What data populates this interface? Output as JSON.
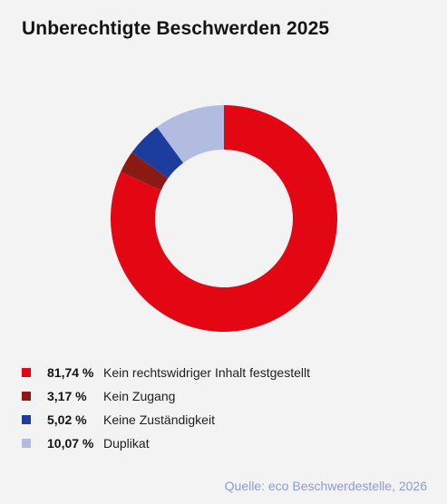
{
  "title": "Unberechtigte Beschwerden 2025",
  "source": "Quelle: eco Beschwerdestelle, 2026",
  "chart_data": {
    "type": "pie",
    "donut": true,
    "title": "Unberechtigte Beschwerden 2025",
    "legend_position": "bottom-left",
    "categories": [
      "Kein rechtswidriger Inhalt festgestellt",
      "Kein Zugang",
      "Keine Zuständigkeit",
      "Duplikat"
    ],
    "values": [
      81.74,
      3.17,
      5.02,
      10.07
    ],
    "labels": [
      "81,74 %",
      "3,17 %",
      "5,02 %",
      "10,07 %"
    ],
    "colors": [
      "#e30613",
      "#8b1a14",
      "#1d3d9e",
      "#b1bce0"
    ]
  }
}
